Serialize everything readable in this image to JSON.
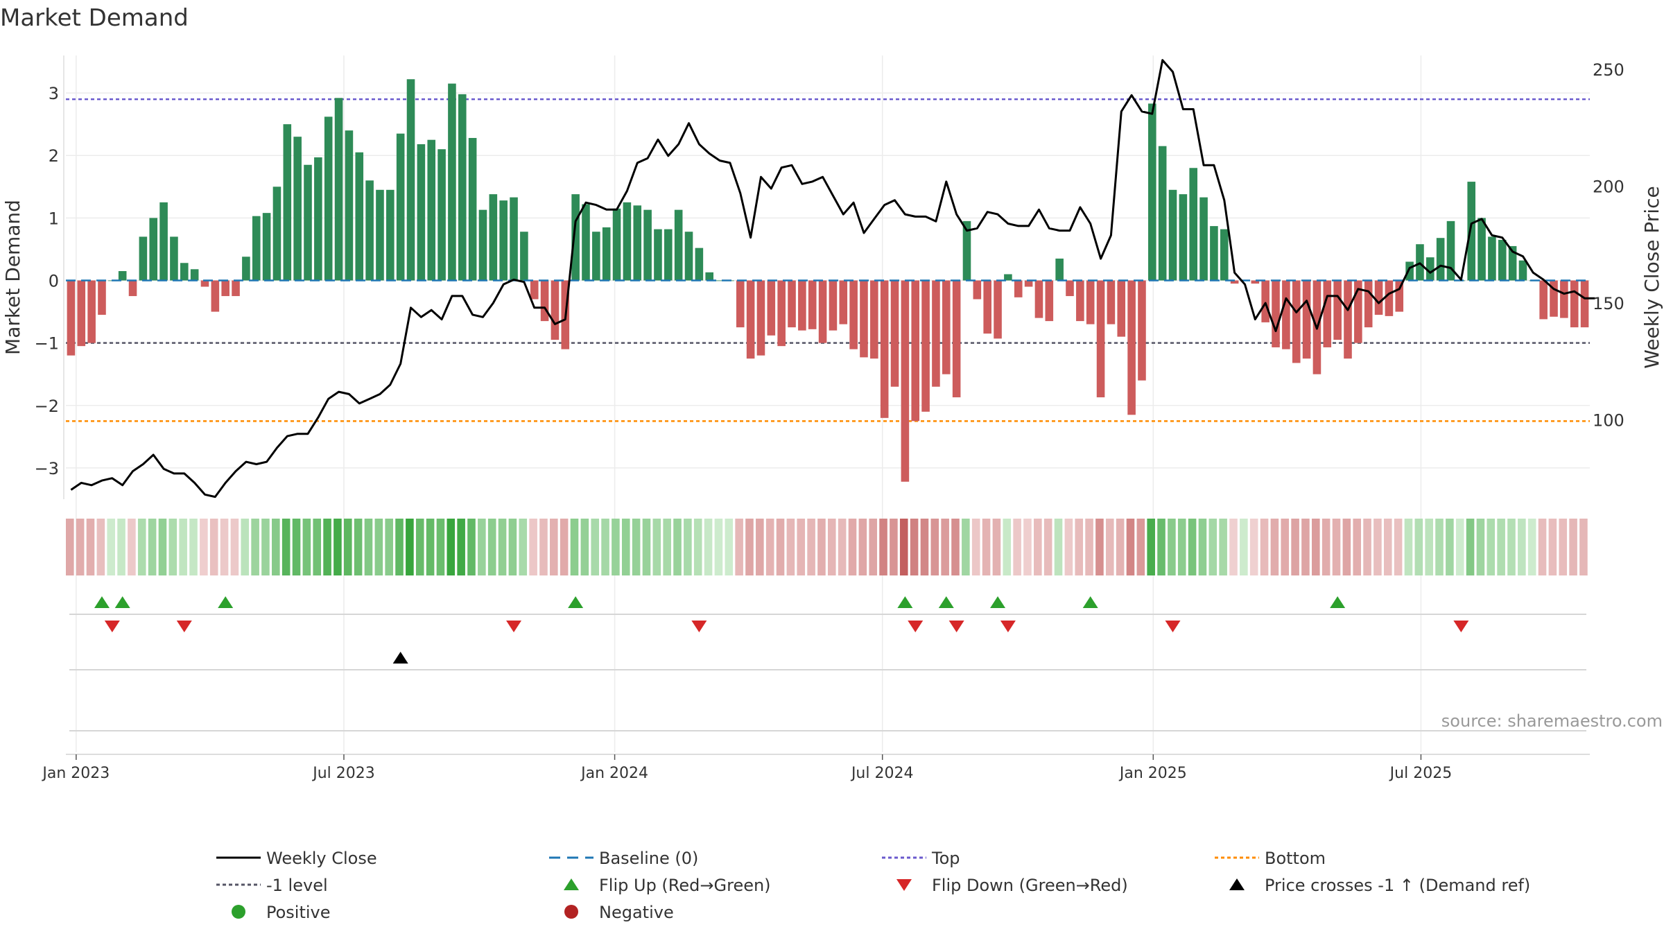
{
  "title": "Market Demand",
  "source": "source: sharemaestro.com",
  "colors": {
    "pos": "#2e8b57",
    "neg": "#cd5c5c",
    "price": "#000000",
    "top": "#6a5acd",
    "bottom": "#ff8c00",
    "minus1": "#555566",
    "baseline": "#1f77b4",
    "flipUp": "#2ca02c",
    "flipDown": "#d62728",
    "cross": "#000000",
    "legendPos": "#2ca02c",
    "legendNeg": "#b22222"
  },
  "chart_data": {
    "type": "bar+line",
    "title": "Market Demand",
    "ylabel": "Market Demand",
    "y2label": "Weekly Close Price",
    "ylim": [
      -3.5,
      3.6
    ],
    "y2lim": [
      66,
      256
    ],
    "yticks": [
      -3,
      -2,
      -1,
      0,
      1,
      2,
      3
    ],
    "y2ticks": [
      100,
      150,
      200,
      250
    ],
    "top_level": 2.9,
    "bottom_level": -2.25,
    "minus1_level": -1,
    "x_start": "2022-12-26",
    "x_end": "2025-09-29",
    "x_ticks": [
      {
        "label": "Jan 2023",
        "week": 1
      },
      {
        "label": "Jul 2023",
        "week": 27
      },
      {
        "label": "Jan 2024",
        "week": 53.3
      },
      {
        "label": "Jul 2024",
        "week": 79.3
      },
      {
        "label": "Jan 2025",
        "week": 105.6
      },
      {
        "label": "Jul 2025",
        "week": 131.6
      }
    ],
    "demand": [
      -1.2,
      -1.05,
      -1.0,
      -0.55,
      0.0,
      0.15,
      -0.25,
      0.7,
      1.0,
      1.25,
      0.7,
      0.28,
      0.18,
      -0.1,
      -0.5,
      -0.25,
      -0.25,
      0.38,
      1.03,
      1.08,
      1.5,
      2.5,
      2.3,
      1.85,
      1.97,
      2.62,
      2.92,
      2.4,
      2.05,
      1.6,
      1.45,
      1.45,
      2.35,
      3.22,
      2.18,
      2.25,
      2.1,
      3.15,
      2.98,
      2.28,
      1.13,
      1.38,
      1.28,
      1.33,
      0.78,
      -0.3,
      -0.65,
      -0.95,
      -1.1,
      1.38,
      1.22,
      0.78,
      0.85,
      1.15,
      1.25,
      1.2,
      1.13,
      0.82,
      0.82,
      1.13,
      0.78,
      0.52,
      0.13,
      0.0,
      0.0,
      -0.75,
      -1.25,
      -1.2,
      -0.88,
      -1.05,
      -0.75,
      -0.8,
      -0.78,
      -1.0,
      -0.8,
      -0.7,
      -1.1,
      -1.23,
      -1.25,
      -2.2,
      -1.7,
      -3.22,
      -2.25,
      -2.1,
      -1.7,
      -1.5,
      -1.87,
      0.95,
      -0.3,
      -0.85,
      -0.93,
      0.1,
      -0.27,
      -0.1,
      -0.6,
      -0.65,
      0.35,
      -0.25,
      -0.65,
      -0.7,
      -1.87,
      -0.7,
      -0.9,
      -2.15,
      -1.6,
      2.83,
      2.15,
      1.45,
      1.38,
      1.8,
      1.33,
      0.87,
      0.82,
      -0.05,
      0.0,
      -0.05,
      -0.67,
      -1.07,
      -1.1,
      -1.32,
      -1.25,
      -1.5,
      -1.07,
      -0.95,
      -1.25,
      -1.0,
      -0.75,
      -0.55,
      -0.57,
      -0.5,
      0.3,
      0.58,
      0.37,
      0.68,
      0.95,
      0.0,
      1.58,
      1.0,
      0.7,
      0.65,
      0.55,
      0.32,
      0.0,
      -0.62,
      -0.58,
      -0.6,
      -0.75,
      -0.75
    ],
    "close": [
      70,
      73,
      72,
      74,
      75,
      72,
      78,
      81,
      85,
      79,
      77,
      77,
      73,
      68,
      67,
      73,
      78,
      82,
      81,
      82,
      88,
      93,
      94,
      94,
      101,
      109,
      112,
      111,
      107,
      109,
      111,
      115,
      124,
      148,
      144,
      147,
      143,
      153,
      153,
      145,
      144,
      150,
      158,
      160,
      159,
      148,
      148,
      141,
      143,
      185,
      193,
      192,
      190,
      190,
      198,
      210,
      212,
      220,
      213,
      218,
      227,
      218,
      214,
      211,
      210,
      197,
      178,
      204,
      199,
      208,
      209,
      201,
      202,
      204,
      196,
      188,
      193,
      180,
      186,
      192,
      194,
      188,
      187,
      187,
      185,
      202,
      188,
      181,
      182,
      189,
      188,
      184,
      183,
      183,
      190,
      182,
      181,
      181,
      191,
      184,
      169,
      179,
      232,
      239,
      232,
      231,
      254,
      249,
      233,
      233,
      209,
      209,
      194,
      163,
      158,
      143,
      150,
      138,
      152,
      146,
      151,
      139,
      153,
      153,
      147,
      156,
      155,
      150,
      154,
      156,
      165,
      167,
      163,
      166,
      165,
      160,
      184,
      186,
      179,
      178,
      172,
      170,
      163,
      160,
      156,
      154,
      155,
      152,
      152
    ],
    "flip_up_weeks": [
      3,
      5,
      15,
      49,
      81,
      85,
      90,
      99,
      123
    ],
    "flip_down_weeks": [
      4,
      11,
      43,
      61,
      82,
      86,
      91,
      107,
      135
    ],
    "cross_up_weeks": [
      32
    ],
    "legend": [
      "Weekly Close",
      "Baseline (0)",
      "Top",
      "Bottom",
      "-1 level",
      "Flip Up (Red→Green)",
      "Flip Down (Green→Red)",
      "Price crosses -1 ↑ (Demand ref)",
      "Positive",
      "Negative"
    ]
  }
}
